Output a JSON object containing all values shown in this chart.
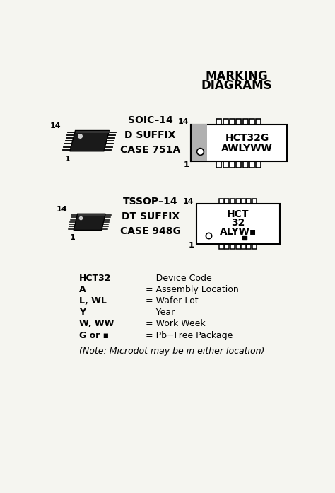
{
  "title_line1": "MARKING",
  "title_line2": "DIAGRAMS",
  "bg_color": "#f5f5f0",
  "title_fontsize": 12,
  "title_fontweight": "bold",
  "soic_label": "SOIC–14\nD SUFFIX\nCASE 751A",
  "tssop_label": "TSSOP–14\nDT SUFFIX\nCASE 948G",
  "soic_chip_line1": "HCT32G",
  "soic_chip_line2": "AWLYWW",
  "tssop_chip_line1": "HCT",
  "tssop_chip_line2": "32",
  "tssop_chip_line3": "ALYW▪",
  "legend_items": [
    {
      "label": "HCT32",
      "desc": "= Device Code"
    },
    {
      "label": "A",
      "desc": "= Assembly Location"
    },
    {
      "label": "L, WL",
      "desc": "= Wafer Lot"
    },
    {
      "label": "Y",
      "desc": "= Year"
    },
    {
      "label": "W, WW",
      "desc": "= Work Week"
    },
    {
      "label": "G or ▪",
      "desc": "= Pb−Free Package"
    }
  ],
  "legend_note": "(Note: Microdot may be in either location)",
  "text_color": "#000000",
  "gray_notch": "#b0b0b0"
}
